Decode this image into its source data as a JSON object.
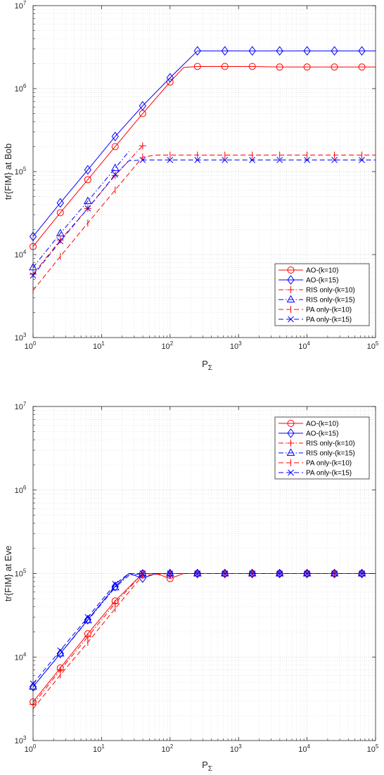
{
  "chart_data": [
    {
      "type": "line",
      "title": "",
      "xlabel": "P",
      "xlabel_sub": "Σ",
      "ylabel": "tr{FIM}  at Bob",
      "xscale": "log",
      "yscale": "log",
      "xlim": [
        1,
        100000
      ],
      "ylim": [
        1000,
        10000000
      ],
      "grid": true,
      "legend_position": "bottom-right",
      "series": [
        {
          "name": "AO-(k=10)",
          "color": "#ff0000",
          "dash": "solid",
          "marker": "circle",
          "x": [
            1,
            2.5,
            6.3,
            15.8,
            39.8,
            100,
            158,
            251,
            631,
            1585,
            3981,
            10000,
            25119,
            63096,
            100000
          ],
          "y": [
            12500,
            32000,
            80000,
            200000,
            500000,
            1200000,
            1800000,
            1850000,
            1850000,
            1850000,
            1820000,
            1820000,
            1820000,
            1820000,
            1820000
          ],
          "mx": [
            1,
            2.5,
            6.3,
            15.8,
            39.8,
            100,
            251,
            631,
            1585,
            3981,
            10000,
            25119,
            63096
          ]
        },
        {
          "name": "AO-(k=15)",
          "color": "#0000ff",
          "dash": "solid",
          "marker": "diamond",
          "x": [
            1,
            2.5,
            6.3,
            15.8,
            39.8,
            100,
            251,
            631,
            1585,
            3981,
            10000,
            25119,
            63096,
            100000
          ],
          "y": [
            16500,
            42000,
            105000,
            265000,
            620000,
            1350000,
            2850000,
            2850000,
            2850000,
            2850000,
            2850000,
            2850000,
            2850000,
            2850000
          ],
          "mx": [
            1,
            2.5,
            6.3,
            15.8,
            39.8,
            100,
            251,
            631,
            1585,
            3981,
            10000,
            25119,
            63096
          ]
        },
        {
          "name": "RIS only-(k=10)",
          "color": "#ff0000",
          "dash": "dashdot",
          "marker": "plus",
          "x": [
            1,
            2.5,
            6.3,
            15.8,
            39.8
          ],
          "y": [
            5800,
            15000,
            36000,
            90000,
            205000
          ],
          "mx": [
            1,
            2.5,
            6.3,
            15.8,
            39.8
          ]
        },
        {
          "name": "RIS only-(k=15)",
          "color": "#0000ff",
          "dash": "dashdot",
          "marker": "triangle",
          "x": [
            1,
            2.5,
            6.3,
            15.8,
            25.1
          ],
          "y": [
            7000,
            18000,
            44000,
            110000,
            175000
          ],
          "mx": [
            1,
            2.5,
            6.3,
            15.8
          ]
        },
        {
          "name": "PA only-(k=10)",
          "color": "#ff0000",
          "dash": "dashed",
          "marker": "tick",
          "x": [
            1,
            2.5,
            6.3,
            15.8,
            39.8,
            63,
            100,
            251,
            631,
            1585,
            3981,
            10000,
            25119,
            63096,
            100000
          ],
          "y": [
            3700,
            9500,
            24000,
            60000,
            150000,
            158000,
            158000,
            158000,
            158000,
            158000,
            158000,
            158000,
            158000,
            158000,
            158000
          ],
          "mx": [
            1,
            2.5,
            6.3,
            15.8,
            39.8,
            100,
            251,
            631,
            1585,
            3981,
            10000,
            25119,
            63096
          ]
        },
        {
          "name": "PA only-(k=15)",
          "color": "#0000ff",
          "dash": "dashed",
          "marker": "x",
          "x": [
            1,
            2.5,
            6.3,
            15.8,
            25.1,
            39.8,
            100,
            251,
            631,
            1585,
            3981,
            10000,
            25119,
            63096,
            100000
          ],
          "y": [
            5600,
            14500,
            36000,
            92000,
            135000,
            138000,
            138000,
            138000,
            138000,
            138000,
            138000,
            138000,
            138000,
            138000,
            138000
          ],
          "mx": [
            1,
            2.5,
            6.3,
            15.8,
            39.8,
            100,
            251,
            631,
            1585,
            3981,
            10000,
            25119,
            63096
          ]
        }
      ]
    },
    {
      "type": "line",
      "title": "",
      "xlabel": "P",
      "xlabel_sub": "Σ",
      "ylabel": "tr{FIM}  at Eve",
      "xscale": "log",
      "yscale": "log",
      "xlim": [
        1,
        100000
      ],
      "ylim": [
        1000,
        10000000
      ],
      "grid": true,
      "legend_position": "top-right",
      "series": [
        {
          "name": "AO-(k=10)",
          "color": "#ff0000",
          "dash": "solid",
          "marker": "circle",
          "x": [
            1,
            2.5,
            6.3,
            15.8,
            39.8,
            63,
            100,
            158,
            251,
            631,
            1585,
            3981,
            10000,
            25119,
            63096,
            100000
          ],
          "y": [
            2900,
            7400,
            19000,
            47000,
            100000,
            100000,
            87000,
            100000,
            100000,
            100000,
            100000,
            100000,
            100000,
            100000,
            100000,
            100000
          ],
          "mx": [
            1,
            2.5,
            6.3,
            15.8,
            39.8,
            100,
            251,
            631,
            1585,
            3981,
            10000,
            25119,
            63096
          ]
        },
        {
          "name": "AO-(k=15)",
          "color": "#0000ff",
          "dash": "solid",
          "marker": "diamond",
          "x": [
            1,
            2.5,
            6.3,
            15.8,
            25.1,
            39.8,
            63,
            100,
            251,
            631,
            1585,
            3981,
            10000,
            25119,
            63096,
            100000
          ],
          "y": [
            4400,
            11000,
            28000,
            70000,
            100000,
            88000,
            100000,
            100000,
            100000,
            100000,
            100000,
            100000,
            100000,
            100000,
            100000,
            100000
          ],
          "mx": [
            1,
            2.5,
            6.3,
            15.8,
            39.8,
            100,
            251,
            631,
            1585,
            3981,
            10000,
            25119,
            63096
          ]
        },
        {
          "name": "RIS only-(k=10)",
          "color": "#ff0000",
          "dash": "dashdot",
          "marker": "plus",
          "x": [
            1,
            2.5,
            6.3,
            15.8,
            39.8,
            100,
            251,
            631,
            1585,
            3981,
            10000,
            25119,
            63096,
            100000
          ],
          "y": [
            2700,
            7000,
            17500,
            44000,
            100000,
            100000,
            100000,
            100000,
            100000,
            100000,
            100000,
            100000,
            100000,
            100000
          ],
          "mx": [
            1,
            2.5,
            6.3,
            15.8,
            39.8,
            100,
            251,
            631,
            1585,
            3981,
            10000,
            25119,
            63096
          ]
        },
        {
          "name": "RIS only-(k=15)",
          "color": "#0000ff",
          "dash": "dashdot",
          "marker": "triangle",
          "x": [
            1,
            2.5,
            6.3,
            15.8,
            25.1,
            39.8,
            100,
            251,
            631,
            1585,
            3981,
            10000,
            25119,
            63096,
            100000
          ],
          "y": [
            4400,
            11000,
            27500,
            68000,
            95000,
            100000,
            100000,
            100000,
            100000,
            100000,
            100000,
            100000,
            100000,
            100000,
            100000
          ],
          "mx": [
            1,
            2.5,
            6.3,
            15.8,
            39.8,
            100,
            251,
            631,
            1585,
            3981,
            10000,
            25119,
            63096
          ]
        },
        {
          "name": "PA only-(k=10)",
          "color": "#ff0000",
          "dash": "dashed",
          "marker": "tick",
          "x": [
            1,
            2.5,
            6.3,
            15.8,
            39.8,
            100,
            251,
            631,
            1585,
            3981,
            10000,
            25119,
            63096,
            100000
          ],
          "y": [
            2400,
            6100,
            15000,
            38000,
            95000,
            100000,
            100000,
            100000,
            100000,
            100000,
            100000,
            100000,
            100000,
            100000
          ],
          "mx": [
            1,
            2.5,
            6.3,
            15.8,
            39.8,
            100,
            251,
            631,
            1585,
            3981,
            10000,
            25119,
            63096
          ]
        },
        {
          "name": "PA only-(k=15)",
          "color": "#0000ff",
          "dash": "dashed",
          "marker": "x",
          "x": [
            1,
            2.5,
            6.3,
            15.8,
            25.1,
            39.8,
            100,
            251,
            631,
            1585,
            3981,
            10000,
            25119,
            63096,
            100000
          ],
          "y": [
            4800,
            12000,
            30000,
            75000,
            100000,
            100000,
            100000,
            100000,
            100000,
            100000,
            100000,
            100000,
            100000,
            100000,
            100000
          ],
          "mx": [
            1,
            2.5,
            6.3,
            15.8,
            39.8,
            100,
            251,
            631,
            1585,
            3981,
            10000,
            25119,
            63096
          ]
        }
      ]
    }
  ]
}
